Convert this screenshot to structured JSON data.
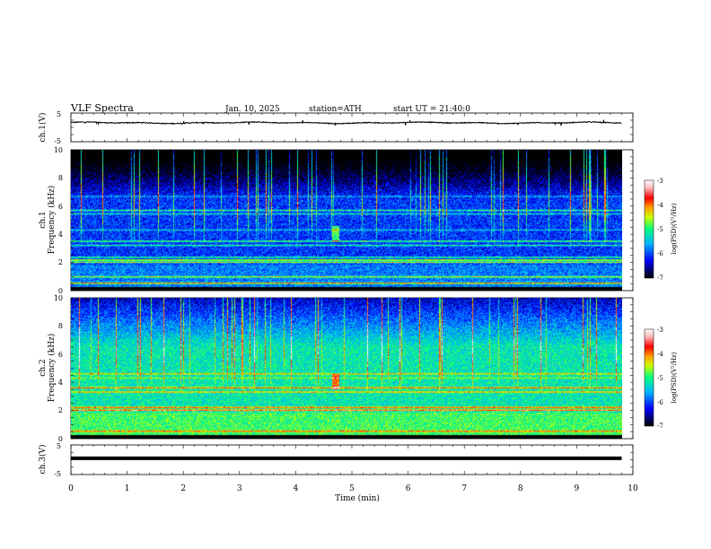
{
  "header": {
    "title": "VLF Spectra",
    "date": "Jan. 10, 2025",
    "station": "station=ATH",
    "start_ut": "start UT =  21:40:0"
  },
  "chart_data": [
    {
      "type": "line",
      "panel": "ch1-voltage",
      "ylabel": "ch.1(V)",
      "yticks": [
        "5",
        "-5"
      ],
      "ylim": [
        -5,
        5
      ],
      "x_range_min": [
        0,
        9.8
      ],
      "trace_level_v": 1.6,
      "trace_fluctuation_v": 0.5,
      "color": "#000000"
    },
    {
      "type": "heatmap",
      "panel": "ch1-spectrogram",
      "ylabel_channel": "ch.1",
      "ylabel": "Frequency (kHz)",
      "yticks": [
        "0",
        "2",
        "4",
        "6",
        "8",
        "10"
      ],
      "ylim_khz": [
        0,
        10
      ],
      "x_range_min": [
        0,
        9.8
      ],
      "colorbar": {
        "label": "log(PSD)(V²/Hz)",
        "ticks": [
          "-3",
          "-4",
          "-5",
          "-6",
          "-7"
        ],
        "range": [
          -7,
          -3
        ]
      },
      "bands_khz": [
        {
          "f": 0.5,
          "level": -3.6
        },
        {
          "f": 0.95,
          "level": -4.3
        },
        {
          "f": 2.0,
          "level": -4.2
        },
        {
          "f": 2.15,
          "level": -3.9
        },
        {
          "f": 2.35,
          "level": -4.8
        },
        {
          "f": 3.2,
          "level": -5.0
        },
        {
          "f": 3.5,
          "level": -4.6
        },
        {
          "f": 4.3,
          "level": -5.4
        },
        {
          "f": 5.45,
          "level": -5.2
        },
        {
          "f": 5.7,
          "level": -4.9
        },
        {
          "f": 6.7,
          "level": -5.5
        }
      ],
      "background_level": -6.1
    },
    {
      "type": "heatmap",
      "panel": "ch2-spectrogram",
      "ylabel_channel": "ch.2",
      "ylabel": "Frequency (kHz)",
      "yticks": [
        "0",
        "2",
        "4",
        "6",
        "8",
        "10"
      ],
      "ylim_khz": [
        0,
        10
      ],
      "x_range_min": [
        0,
        9.8
      ],
      "colorbar": {
        "label": "log(PSD)(V²/Hz)",
        "ticks": [
          "-3",
          "-4",
          "-5",
          "-6",
          "-7"
        ],
        "range": [
          -7,
          -3
        ]
      },
      "bands_khz": [
        {
          "f": 0.5,
          "level": -3.8
        },
        {
          "f": 2.0,
          "level": -3.3
        },
        {
          "f": 2.2,
          "level": -3.6
        },
        {
          "f": 3.3,
          "level": -4.0
        },
        {
          "f": 3.6,
          "level": -3.7
        },
        {
          "f": 4.6,
          "level": -4.1
        },
        {
          "f": 4.3,
          "level": -4.6
        },
        {
          "f": 6.3,
          "level": -5.3
        },
        {
          "f": 7.0,
          "level": -5.4
        }
      ],
      "background_level": -5.2
    },
    {
      "type": "line",
      "panel": "ch3-voltage",
      "ylabel": "ch.3(V)",
      "yticks": [
        "5",
        "-5"
      ],
      "ylim": [
        -5,
        5
      ],
      "x_range_min": [
        0,
        9.8
      ],
      "trace_level_v": 0.5,
      "color": "#000000"
    }
  ],
  "x_axis": {
    "label": "Time (min)",
    "ticks": [
      "0",
      "1",
      "2",
      "3",
      "4",
      "5",
      "6",
      "7",
      "8",
      "9",
      "10"
    ],
    "xlim": [
      0,
      10
    ]
  }
}
